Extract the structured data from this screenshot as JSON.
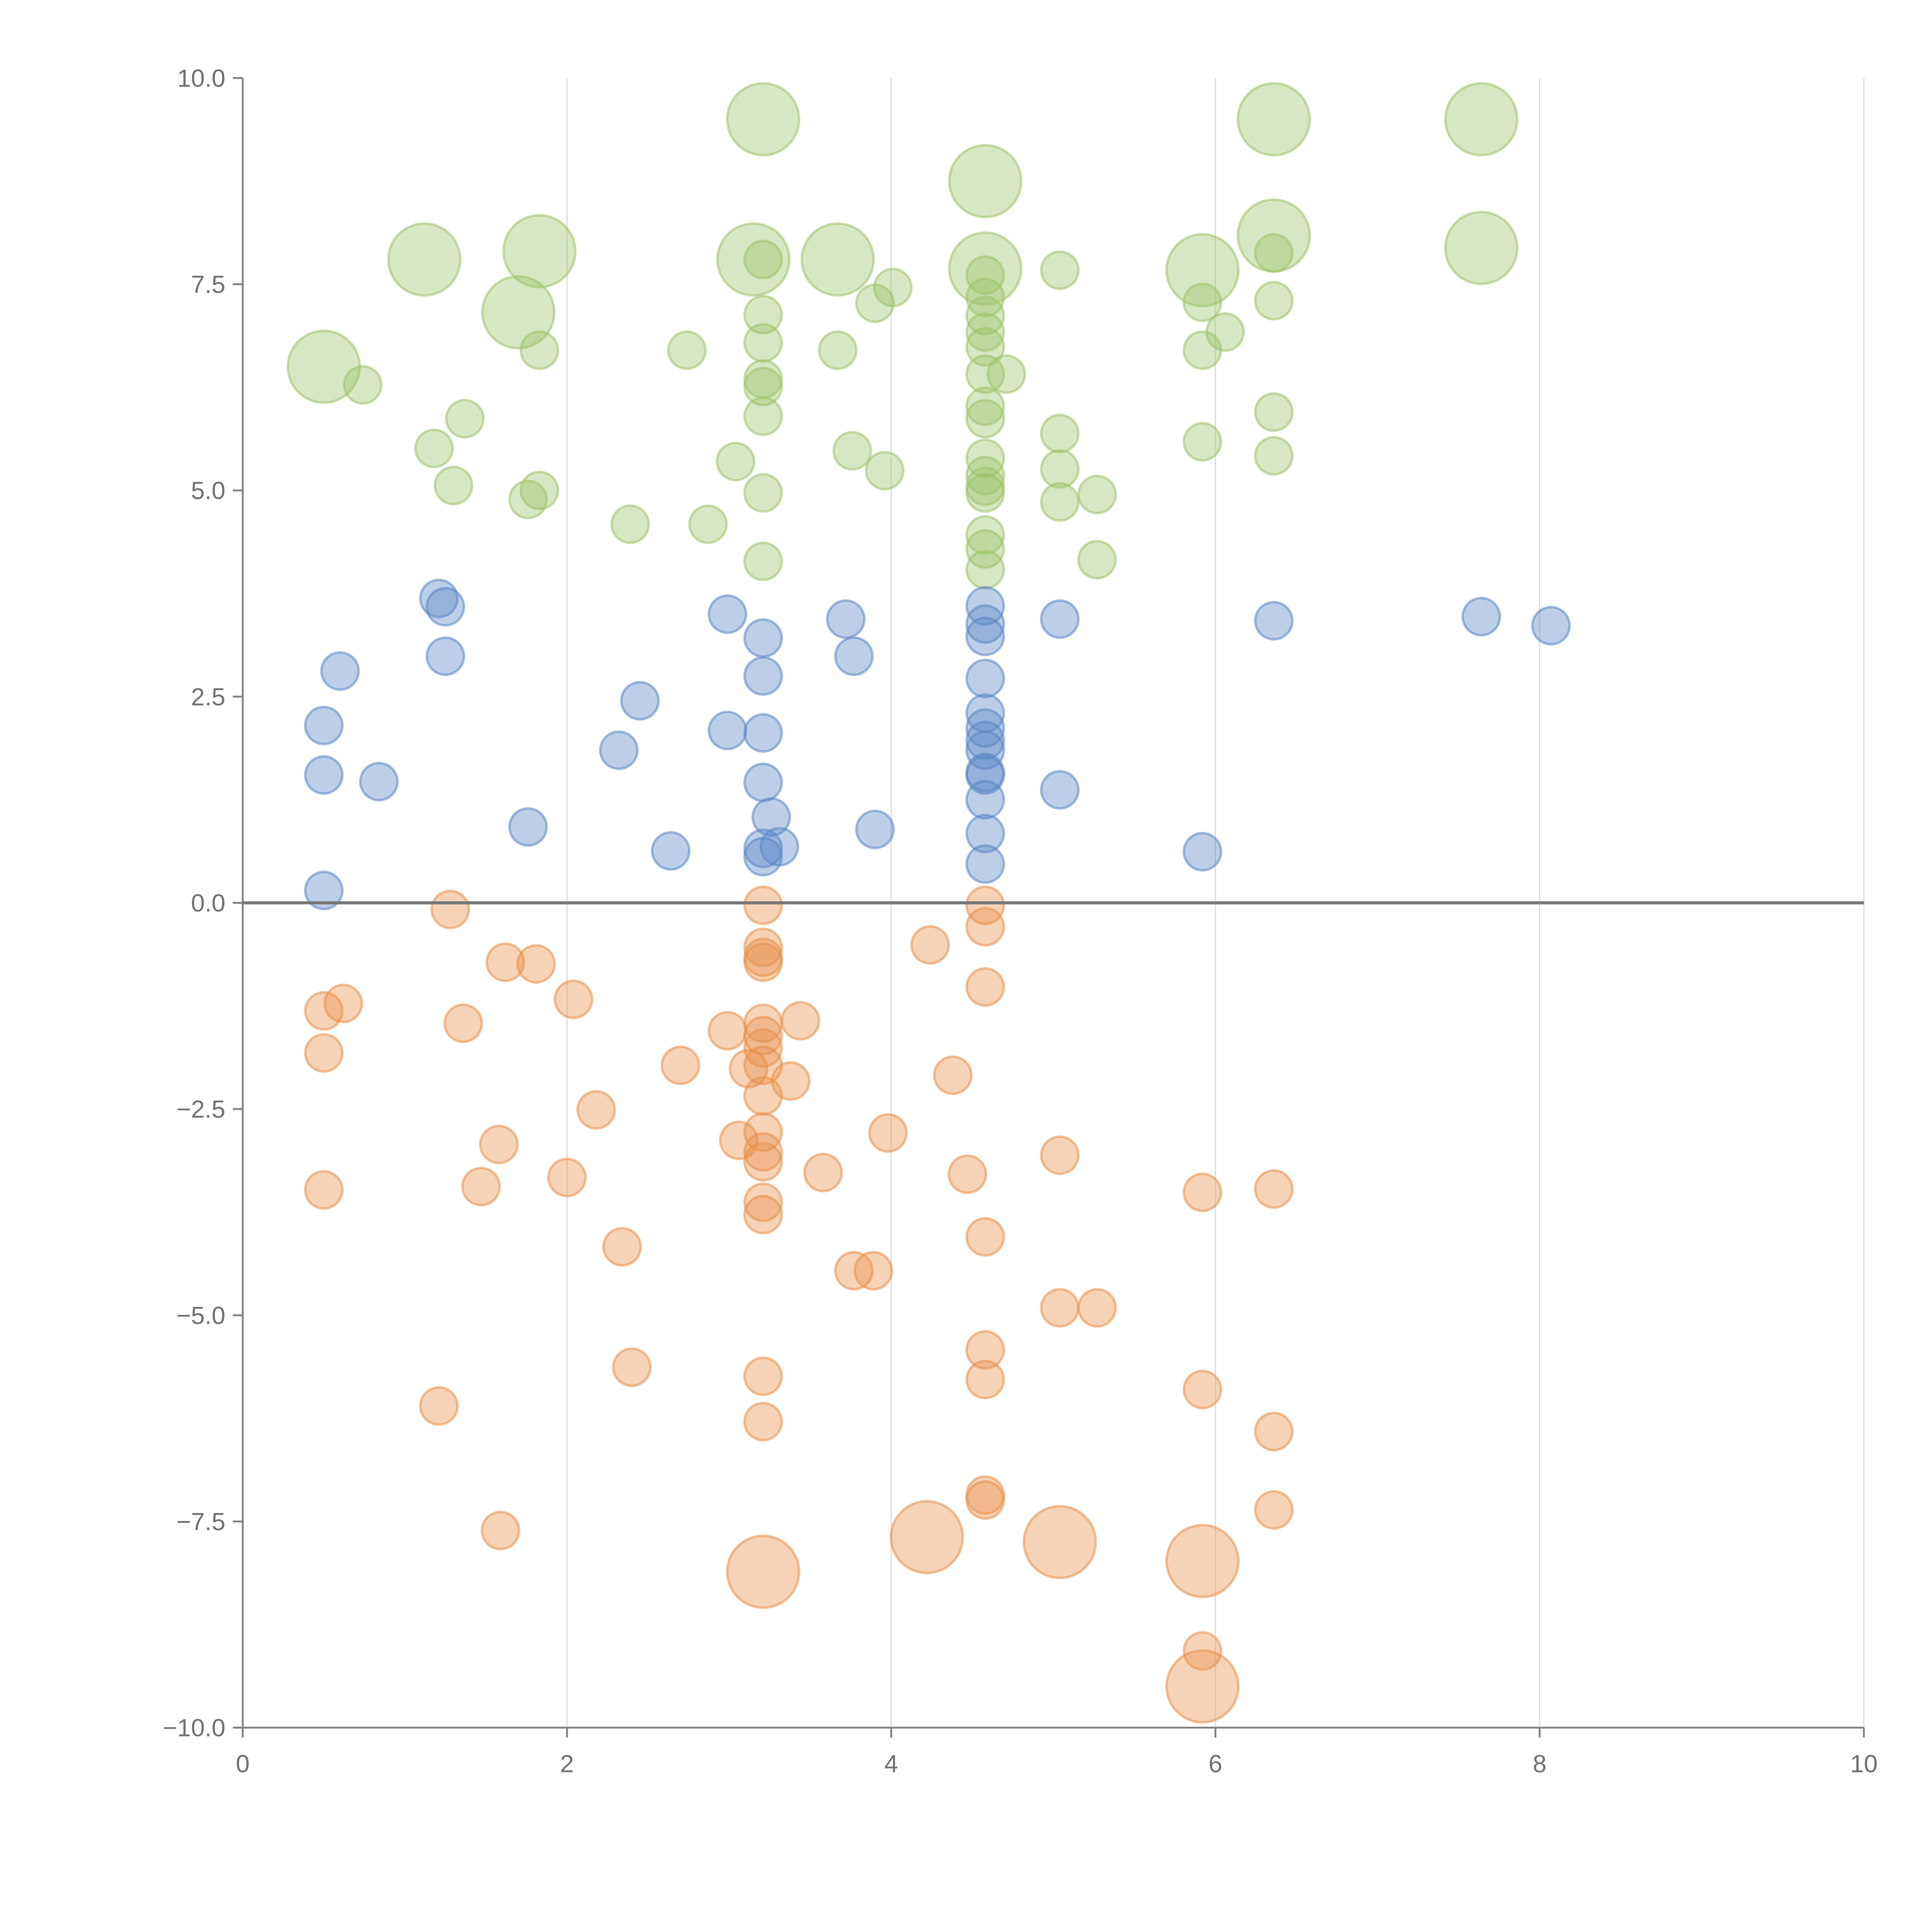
{
  "chart_data": {
    "type": "scatter",
    "title": "",
    "xlabel": "",
    "ylabel": "",
    "xlim": [
      0,
      10
    ],
    "ylim": [
      -10,
      10
    ],
    "x_ticks": [
      "0",
      "2",
      "4",
      "6",
      "8",
      "10"
    ],
    "y_ticks": [
      "−10.0",
      "−7.5",
      "−5.0",
      "−2.5",
      "0.0",
      "2.5",
      "5.0",
      "7.5",
      "10.0"
    ],
    "grid": "vertical",
    "zero_line": true,
    "series": [
      {
        "name": "green",
        "color": "#9dc26a",
        "large": [
          [
            0.5,
            6.5
          ],
          [
            1.12,
            7.8
          ],
          [
            1.7,
            7.16
          ],
          [
            1.83,
            7.9
          ],
          [
            3.21,
            9.5
          ],
          [
            3.15,
            7.8
          ],
          [
            3.67,
            7.8
          ],
          [
            4.58,
            8.75
          ],
          [
            4.58,
            7.69
          ],
          [
            6.36,
            9.5
          ],
          [
            6.36,
            8.09
          ],
          [
            5.92,
            7.67
          ],
          [
            7.64,
            9.5
          ],
          [
            7.64,
            7.94
          ]
        ],
        "small": [
          [
            0.74,
            6.28
          ],
          [
            1.18,
            5.51
          ],
          [
            1.37,
            5.87
          ],
          [
            1.3,
            5.06
          ],
          [
            1.76,
            4.89
          ],
          [
            1.83,
            5.0
          ],
          [
            1.83,
            6.7
          ],
          [
            2.39,
            4.59
          ],
          [
            2.74,
            6.7
          ],
          [
            2.87,
            4.59
          ],
          [
            3.04,
            5.35
          ],
          [
            3.21,
            7.8
          ],
          [
            3.21,
            7.13
          ],
          [
            3.21,
            6.79
          ],
          [
            3.21,
            6.35
          ],
          [
            3.21,
            6.26
          ],
          [
            3.21,
            5.9
          ],
          [
            3.21,
            4.97
          ],
          [
            3.21,
            4.14
          ],
          [
            3.67,
            6.7
          ],
          [
            3.76,
            5.48
          ],
          [
            3.9,
            7.27
          ],
          [
            3.96,
            5.24
          ],
          [
            4.01,
            7.46
          ],
          [
            4.58,
            7.61
          ],
          [
            4.58,
            7.34
          ],
          [
            4.58,
            7.12
          ],
          [
            4.58,
            6.92
          ],
          [
            4.58,
            6.74
          ],
          [
            4.58,
            6.41
          ],
          [
            4.58,
            6.02
          ],
          [
            4.58,
            5.87
          ],
          [
            4.58,
            5.39
          ],
          [
            4.58,
            5.18
          ],
          [
            4.58,
            5.05
          ],
          [
            4.58,
            4.97
          ],
          [
            4.58,
            4.46
          ],
          [
            4.58,
            4.29
          ],
          [
            4.58,
            4.04
          ],
          [
            4.71,
            6.41
          ],
          [
            5.04,
            7.67
          ],
          [
            5.04,
            5.69
          ],
          [
            5.04,
            5.26
          ],
          [
            5.04,
            4.86
          ],
          [
            5.27,
            4.95
          ],
          [
            5.27,
            4.16
          ],
          [
            5.92,
            7.28
          ],
          [
            5.92,
            6.7
          ],
          [
            5.92,
            5.59
          ],
          [
            6.06,
            6.92
          ],
          [
            6.36,
            7.88
          ],
          [
            6.36,
            7.3
          ],
          [
            6.36,
            5.95
          ],
          [
            6.36,
            5.42
          ]
        ]
      },
      {
        "name": "blue",
        "color": "#5a87c5",
        "large": [],
        "small": [
          [
            0.5,
            0.15
          ],
          [
            0.5,
            2.15
          ],
          [
            0.5,
            1.55
          ],
          [
            0.6,
            2.81
          ],
          [
            0.84,
            1.47
          ],
          [
            1.21,
            3.69
          ],
          [
            1.25,
            3.59
          ],
          [
            1.25,
            2.99
          ],
          [
            1.76,
            0.92
          ],
          [
            2.32,
            1.85
          ],
          [
            2.45,
            2.45
          ],
          [
            2.64,
            0.63
          ],
          [
            2.99,
            3.5
          ],
          [
            2.99,
            2.09
          ],
          [
            3.21,
            3.21
          ],
          [
            3.21,
            2.75
          ],
          [
            3.21,
            2.06
          ],
          [
            3.21,
            1.46
          ],
          [
            3.21,
            0.66
          ],
          [
            3.21,
            0.56
          ],
          [
            3.26,
            1.04
          ],
          [
            3.31,
            0.68
          ],
          [
            3.72,
            3.44
          ],
          [
            3.77,
            2.99
          ],
          [
            3.9,
            0.89
          ],
          [
            4.58,
            3.6
          ],
          [
            4.58,
            3.38
          ],
          [
            4.58,
            3.23
          ],
          [
            4.58,
            2.72
          ],
          [
            4.58,
            2.3
          ],
          [
            4.58,
            2.12
          ],
          [
            4.58,
            1.97
          ],
          [
            4.58,
            1.85
          ],
          [
            4.58,
            1.58
          ],
          [
            4.58,
            1.55
          ],
          [
            4.58,
            1.25
          ],
          [
            4.58,
            0.84
          ],
          [
            4.58,
            0.47
          ],
          [
            5.04,
            3.44
          ],
          [
            5.04,
            1.37
          ],
          [
            5.92,
            0.62
          ],
          [
            6.36,
            3.42
          ],
          [
            7.64,
            3.47
          ],
          [
            8.07,
            3.36
          ]
        ]
      },
      {
        "name": "orange",
        "color": "#e8904a",
        "large": [
          [
            3.21,
            -8.11
          ],
          [
            4.22,
            -7.69
          ],
          [
            5.04,
            -7.75
          ],
          [
            5.92,
            -7.98
          ],
          [
            5.92,
            -9.5
          ]
        ],
        "small": [
          [
            0.5,
            -1.31
          ],
          [
            0.5,
            -1.82
          ],
          [
            0.5,
            -3.48
          ],
          [
            0.62,
            -1.22
          ],
          [
            1.28,
            -0.08
          ],
          [
            1.36,
            -1.46
          ],
          [
            1.47,
            -3.44
          ],
          [
            1.58,
            -2.93
          ],
          [
            1.59,
            -7.61
          ],
          [
            1.62,
            -0.72
          ],
          [
            1.81,
            -0.74
          ],
          [
            2.0,
            -3.33
          ],
          [
            2.04,
            -1.17
          ],
          [
            2.18,
            -2.51
          ],
          [
            2.34,
            -4.17
          ],
          [
            2.4,
            -5.63
          ],
          [
            2.7,
            -1.97
          ],
          [
            2.99,
            -1.55
          ],
          [
            3.06,
            -2.88
          ],
          [
            3.12,
            -2.01
          ],
          [
            3.21,
            -0.03
          ],
          [
            3.21,
            -0.54
          ],
          [
            3.21,
            -0.66
          ],
          [
            3.21,
            -0.72
          ],
          [
            3.21,
            -1.46
          ],
          [
            3.21,
            -1.61
          ],
          [
            3.21,
            -1.76
          ],
          [
            3.21,
            -1.97
          ],
          [
            3.21,
            -2.34
          ],
          [
            3.21,
            -2.78
          ],
          [
            3.21,
            -3.02
          ],
          [
            3.21,
            -3.14
          ],
          [
            3.21,
            -3.63
          ],
          [
            3.21,
            -3.78
          ],
          [
            3.21,
            -5.74
          ],
          [
            3.21,
            -6.29
          ],
          [
            3.38,
            -2.16
          ],
          [
            3.44,
            -1.43
          ],
          [
            3.58,
            -3.27
          ],
          [
            3.77,
            -4.46
          ],
          [
            3.89,
            -4.46
          ],
          [
            3.98,
            -2.79
          ],
          [
            4.24,
            -0.51
          ],
          [
            4.38,
            -2.09
          ],
          [
            4.47,
            -3.29
          ],
          [
            4.58,
            -0.03
          ],
          [
            4.58,
            -0.29
          ],
          [
            4.58,
            -1.02
          ],
          [
            4.58,
            -4.05
          ],
          [
            4.58,
            -5.42
          ],
          [
            4.58,
            -5.78
          ],
          [
            4.58,
            -7.18
          ],
          [
            4.58,
            -7.24
          ],
          [
            5.04,
            -3.06
          ],
          [
            5.04,
            -4.91
          ],
          [
            5.27,
            -4.91
          ],
          [
            5.92,
            -3.51
          ],
          [
            5.92,
            -5.9
          ],
          [
            5.92,
            -9.07
          ],
          [
            6.36,
            -3.47
          ],
          [
            6.36,
            -6.41
          ],
          [
            6.36,
            -7.36
          ],
          [
            1.21,
            -6.1
          ]
        ]
      }
    ]
  }
}
